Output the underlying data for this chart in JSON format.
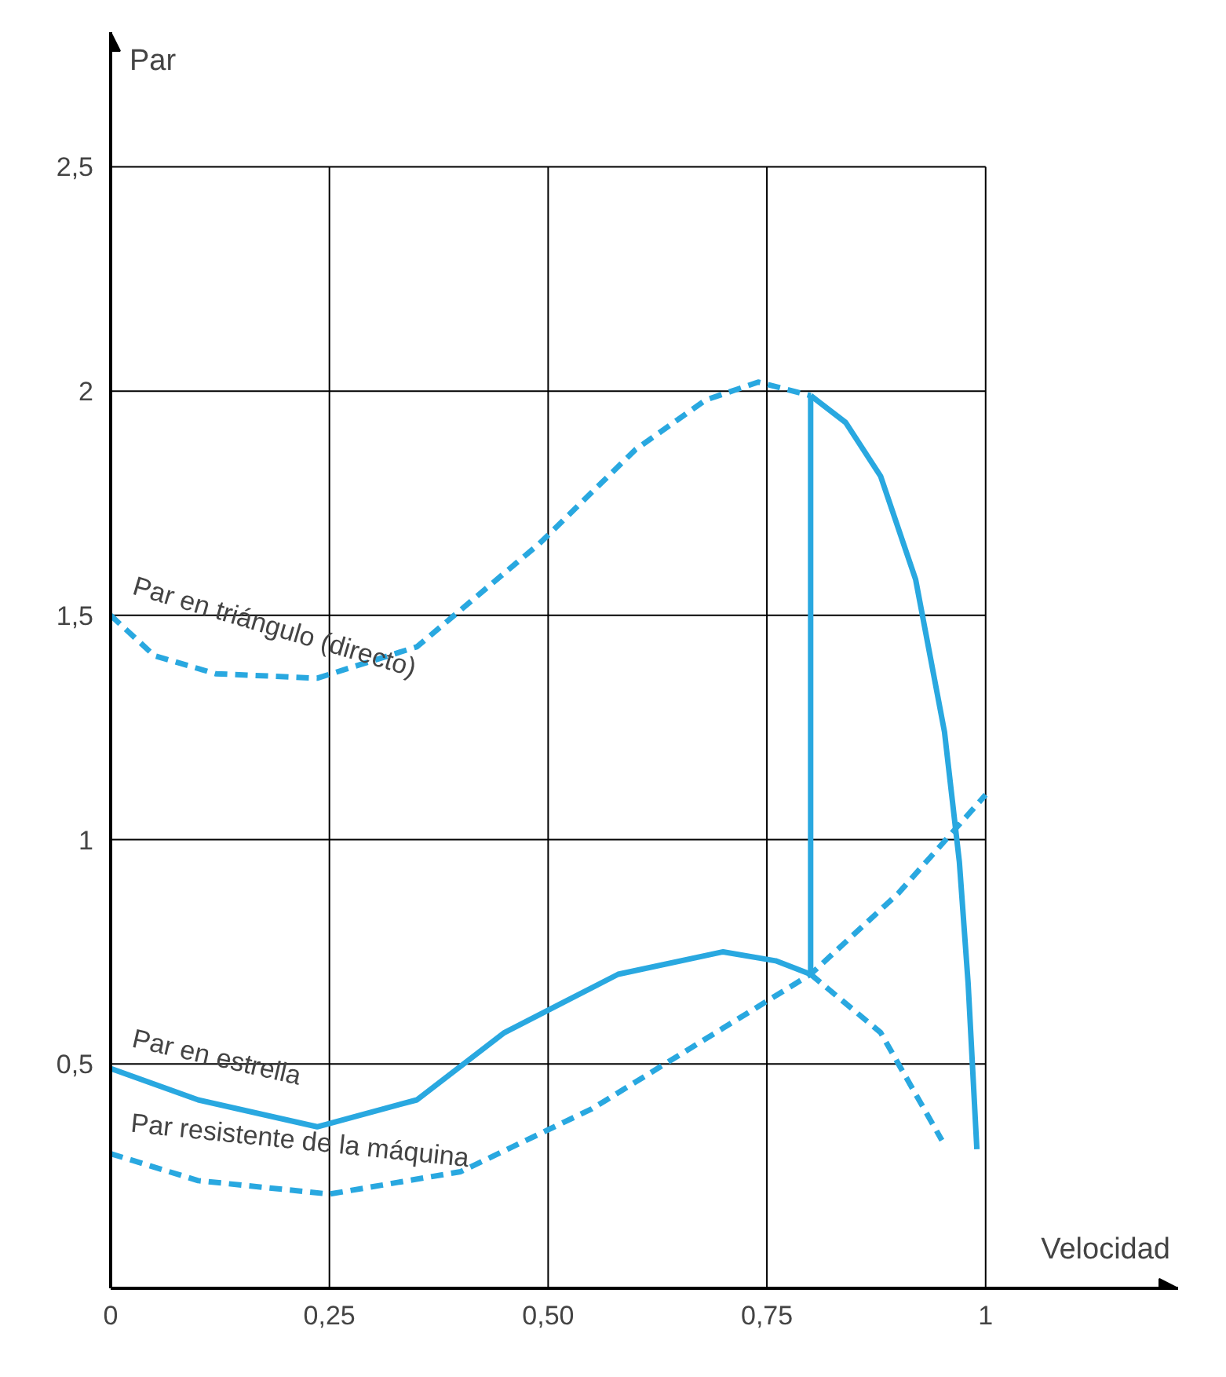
{
  "chart_data": {
    "type": "line",
    "xlabel": "Velocidad",
    "ylabel": "Par",
    "xlim": [
      0,
      1.22
    ],
    "ylim": [
      0,
      2.8
    ],
    "xticks": [
      {
        "value": 0,
        "label": "0"
      },
      {
        "value": 0.25,
        "label": "0,25"
      },
      {
        "value": 0.5,
        "label": "0,50"
      },
      {
        "value": 0.75,
        "label": "0,75"
      },
      {
        "value": 1,
        "label": "1"
      }
    ],
    "yticks": [
      {
        "value": 0.5,
        "label": "0,5"
      },
      {
        "value": 1,
        "label": "1"
      },
      {
        "value": 1.5,
        "label": "1,5"
      },
      {
        "value": 2,
        "label": "2"
      },
      {
        "value": 2.5,
        "label": "2,5"
      }
    ],
    "grid": true,
    "marker": "none",
    "series": [
      {
        "name": "Par en triángulo (directo)",
        "color": "#29a8e0",
        "line_style": "dashed",
        "x": [
          0,
          0.05,
          0.12,
          0.236,
          0.35,
          0.49,
          0.6,
          0.68,
          0.74,
          0.8
        ],
        "values": [
          1.5,
          1.41,
          1.37,
          1.36,
          1.43,
          1.66,
          1.87,
          1.98,
          2.02,
          1.99
        ]
      },
      {
        "color": "#29a8e0",
        "line_style": "solid",
        "x": [
          0.8,
          0.84,
          0.88,
          0.92,
          0.953,
          0.97,
          0.98,
          0.99
        ],
        "values": [
          1.99,
          1.93,
          1.81,
          1.58,
          1.24,
          0.95,
          0.68,
          0.31
        ]
      },
      {
        "color": "#29a8e0",
        "line_style": "solid",
        "x": [
          0.8,
          0.8
        ],
        "values": [
          1.99,
          0.7
        ]
      },
      {
        "name": "Par en estrella",
        "color": "#29a8e0",
        "line_style": "solid",
        "x": [
          0,
          0.1,
          0.236,
          0.35,
          0.45,
          0.58,
          0.7,
          0.76,
          0.8
        ],
        "values": [
          0.49,
          0.42,
          0.36,
          0.42,
          0.57,
          0.7,
          0.75,
          0.73,
          0.7
        ]
      },
      {
        "color": "#29a8e0",
        "line_style": "dashed",
        "x": [
          0.8,
          0.88,
          0.95
        ],
        "values": [
          0.7,
          0.57,
          0.33
        ]
      },
      {
        "name": "Par resistente de la máquina",
        "color": "#29a8e0",
        "line_style": "dashed",
        "x": [
          0,
          0.1,
          0.25,
          0.4,
          0.55,
          0.7,
          0.8,
          0.9,
          1
        ],
        "values": [
          0.3,
          0.24,
          0.21,
          0.26,
          0.4,
          0.58,
          0.7,
          0.88,
          1.1
        ]
      }
    ]
  }
}
